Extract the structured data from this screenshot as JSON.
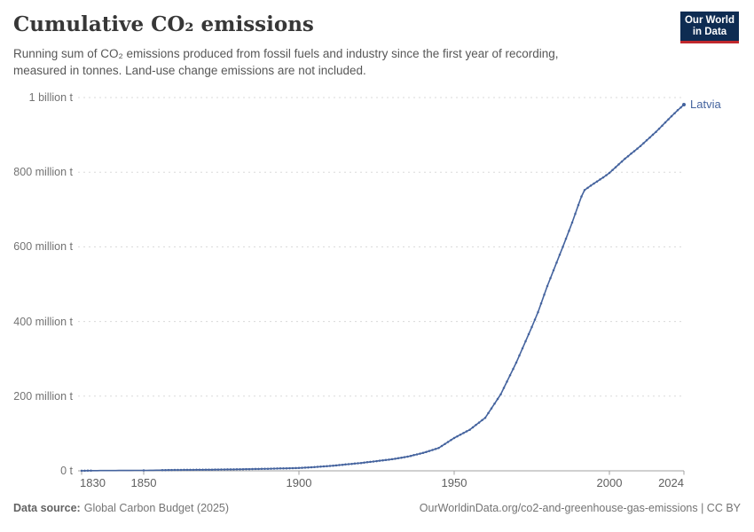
{
  "header": {
    "title": "Cumulative CO₂ emissions",
    "subtitle_lines": [
      "Running sum of CO₂ emissions produced from fossil fuels and industry since the first year of recording,",
      "measured in tonnes. Land-use change emissions are not included."
    ],
    "logo": {
      "line1": "Our World",
      "line2": "in Data"
    }
  },
  "chart_data": {
    "type": "line",
    "title": "Cumulative CO₂ emissions",
    "unit": "tonnes",
    "x_range": [
      1830,
      2024
    ],
    "y_range_million_t": [
      0,
      1000
    ],
    "x_ticks": [
      1830,
      1850,
      1900,
      1950,
      2000,
      2024
    ],
    "y_ticks": [
      {
        "value": 0,
        "label": "0 t"
      },
      {
        "value": 200,
        "label": "200 million t"
      },
      {
        "value": 400,
        "label": "400 million t"
      },
      {
        "value": 600,
        "label": "600 million t"
      },
      {
        "value": 800,
        "label": "800 million t"
      },
      {
        "value": 1000,
        "label": "1 billion t"
      }
    ],
    "grid": "dashed-horizontal",
    "legend_position": "end-of-line",
    "series": [
      {
        "name": "Latvia",
        "color": "#44639e",
        "points_unit": "million tonnes",
        "points": [
          [
            1830,
            0.2
          ],
          [
            1831,
            0.3
          ],
          [
            1832,
            0.4
          ],
          [
            1833,
            0.5
          ],
          [
            1850,
            1.2
          ],
          [
            1856,
            1.8
          ],
          [
            1860,
            2.3
          ],
          [
            1870,
            3
          ],
          [
            1880,
            4
          ],
          [
            1890,
            5.5
          ],
          [
            1900,
            7.5
          ],
          [
            1905,
            10
          ],
          [
            1910,
            13
          ],
          [
            1915,
            17
          ],
          [
            1920,
            21
          ],
          [
            1925,
            26
          ],
          [
            1930,
            31
          ],
          [
            1935,
            38
          ],
          [
            1940,
            48
          ],
          [
            1945,
            61
          ],
          [
            1950,
            88
          ],
          [
            1955,
            110
          ],
          [
            1960,
            142
          ],
          [
            1965,
            205
          ],
          [
            1970,
            290
          ],
          [
            1975,
            385
          ],
          [
            1977,
            425
          ],
          [
            1980,
            495
          ],
          [
            1985,
            600
          ],
          [
            1988,
            665
          ],
          [
            1990,
            712
          ],
          [
            1991,
            735
          ],
          [
            1992,
            752
          ],
          [
            1994,
            764
          ],
          [
            1996,
            775
          ],
          [
            1998,
            786
          ],
          [
            2000,
            798
          ],
          [
            2005,
            836
          ],
          [
            2010,
            870
          ],
          [
            2015,
            908
          ],
          [
            2020,
            950
          ],
          [
            2022,
            966
          ],
          [
            2024,
            981
          ]
        ],
        "dot_segments": [
          [
            1830,
            1833
          ],
          [
            1850,
            1850
          ],
          [
            1856,
            2024
          ]
        ]
      }
    ],
    "colors": {
      "gridline": "#dadada",
      "axis": "#a0a0a0",
      "tick_label": "#5f5f5f"
    }
  },
  "footer": {
    "source_label": "Data source:",
    "source_value": "Global Carbon Budget (2025)",
    "note": "OurWorldinData.org/co2-and-greenhouse-gas-emissions | CC BY"
  }
}
